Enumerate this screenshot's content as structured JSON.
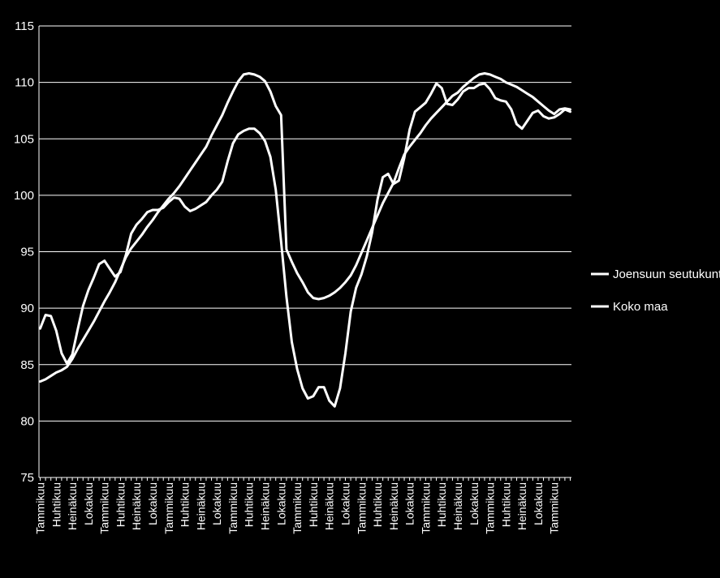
{
  "chart_data": {
    "type": "line",
    "title": "",
    "xlabel": "",
    "ylabel": "",
    "ylim": [
      75,
      115
    ],
    "yticks": [
      75,
      80,
      85,
      90,
      95,
      100,
      105,
      110,
      115
    ],
    "grid": true,
    "legend_position": "right",
    "colors": {
      "background": "#000000",
      "line": "#ffffff",
      "grid": "#ffffff"
    },
    "x_tick_labels": [
      "Tammikuu",
      "Huhtikuu",
      "Heinäkuu",
      "Lokakuu",
      "Tammikuu",
      "Huhtikuu",
      "Heinäkuu",
      "Lokakuu",
      "Tammikuu",
      "Huhtikuu",
      "Heinäkuu",
      "Lokakuu",
      "Tammikuu",
      "Huhtikuu",
      "Heinäkuu",
      "Lokakuu",
      "Tammikuu",
      "Huhtikuu",
      "Heinäkuu",
      "Lokakuu",
      "Tammikuu",
      "Huhtikuu",
      "Heinäkuu",
      "Lokakuu",
      "Tammikuu",
      "Huhtikuu",
      "Heinäkuu",
      "Lokakuu",
      "Tammikuu",
      "Huhtikuu",
      "Heinäkuu",
      "Lokakuu",
      "Tammikuu"
    ],
    "x_tick_step": 3,
    "series": [
      {
        "name": "Joensuun seutukunta",
        "values": [
          88.2,
          89.4,
          89.3,
          88.0,
          86.0,
          85.1,
          85.9,
          88.1,
          90.2,
          91.6,
          92.7,
          93.9,
          94.2,
          93.5,
          92.8,
          93.2,
          94.7,
          96.6,
          97.4,
          97.9,
          98.5,
          98.7,
          98.7,
          98.9,
          99.4,
          99.8,
          99.7,
          99.0,
          98.6,
          98.8,
          99.1,
          99.4,
          100.0,
          100.5,
          101.2,
          103.0,
          104.6,
          105.4,
          105.7,
          105.9,
          105.9,
          105.5,
          104.8,
          103.4,
          100.5,
          95.9,
          91.0,
          87.0,
          84.6,
          82.9,
          82.0,
          82.2,
          83.0,
          83.0,
          81.8,
          81.3,
          82.9,
          86.0,
          89.7,
          91.8,
          93.0,
          94.6,
          96.7,
          99.6,
          101.6,
          101.9,
          101.0,
          101.3,
          103.3,
          105.8,
          107.4,
          107.8,
          108.2,
          109.0,
          109.9,
          109.5,
          108.1,
          108.0,
          108.5,
          109.2,
          109.5,
          109.5,
          109.8,
          109.9,
          109.4,
          108.6,
          108.4,
          108.3,
          107.6,
          106.3,
          105.9,
          106.6,
          107.3,
          107.5,
          107.0,
          106.8,
          106.9,
          107.2,
          107.6,
          107.4
        ]
      },
      {
        "name": "Koko maa",
        "values": [
          83.5,
          83.7,
          84.0,
          84.3,
          84.5,
          84.8,
          85.5,
          86.4,
          87.2,
          88.0,
          88.8,
          89.7,
          90.6,
          91.4,
          92.3,
          93.4,
          94.5,
          95.3,
          95.9,
          96.5,
          97.2,
          97.8,
          98.5,
          99.1,
          99.7,
          100.2,
          100.8,
          101.5,
          102.2,
          102.9,
          103.6,
          104.3,
          105.3,
          106.2,
          107.1,
          108.2,
          109.2,
          110.1,
          110.7,
          110.8,
          110.7,
          110.5,
          110.1,
          109.2,
          107.9,
          107.1,
          95.2,
          94.1,
          93.1,
          92.3,
          91.4,
          90.9,
          90.8,
          90.9,
          91.1,
          91.4,
          91.8,
          92.3,
          92.9,
          93.8,
          94.9,
          96.0,
          97.1,
          98.2,
          99.3,
          100.2,
          101.1,
          102.4,
          103.6,
          104.3,
          104.9,
          105.5,
          106.2,
          106.8,
          107.3,
          107.8,
          108.3,
          108.8,
          109.1,
          109.6,
          110.0,
          110.4,
          110.7,
          110.8,
          110.7,
          110.5,
          110.3,
          110.0,
          109.8,
          109.6,
          109.3,
          109.0,
          108.7,
          108.3,
          107.9,
          107.5,
          107.2,
          107.6,
          107.7,
          107.6
        ]
      }
    ]
  }
}
